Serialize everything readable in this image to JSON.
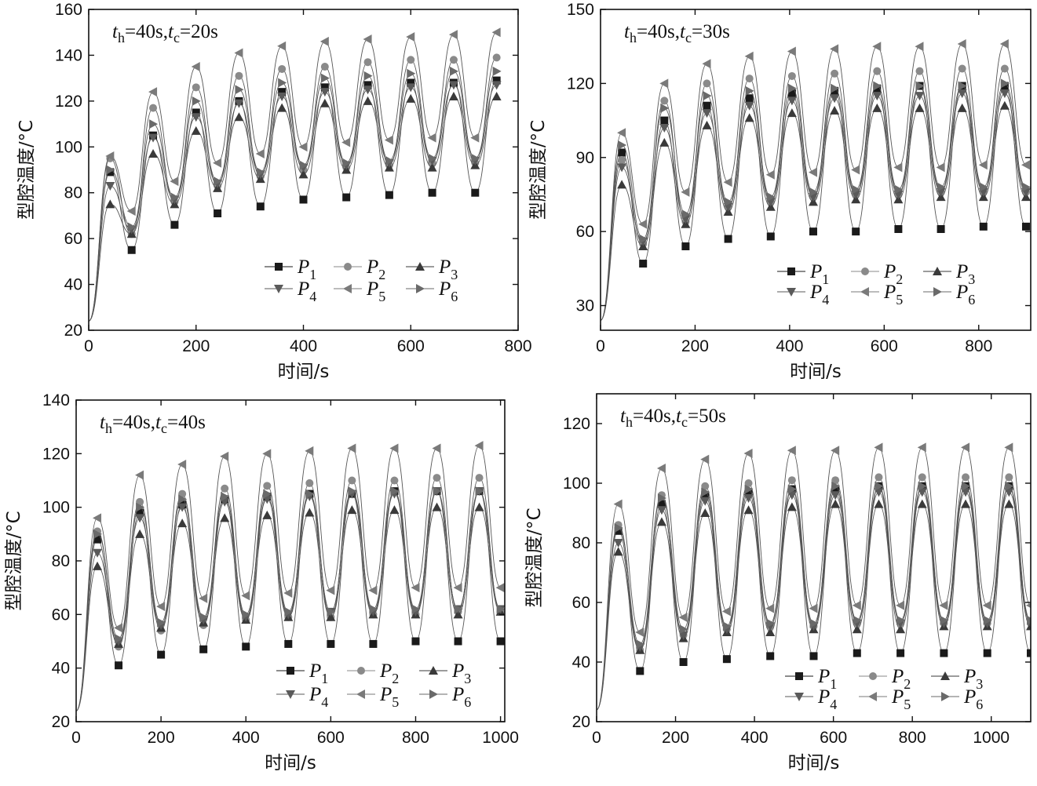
{
  "figure": {
    "ylabel": "型腔温度/°C",
    "xlabel": "时间/s",
    "legend": [
      "P1",
      "P2",
      "P3",
      "P4",
      "P5",
      "P6"
    ]
  },
  "colors": {
    "P1": "#1a1a1a",
    "P2": "#8a8a8a",
    "P3": "#3a3a3a",
    "P4": "#5a5a5a",
    "P5": "#7a7a7a",
    "P6": "#6a6a6a"
  },
  "chart_data": [
    {
      "type": "line",
      "annotation": {
        "th": "40s",
        "tc": "20s"
      },
      "xlim": [
        0,
        800
      ],
      "ylim": [
        20,
        160
      ],
      "xticks": [
        0,
        200,
        400,
        600,
        800
      ],
      "yticks": [
        20,
        40,
        60,
        80,
        100,
        120,
        140,
        160
      ],
      "legend_position": "bottom-right",
      "peak_x": [
        40,
        120,
        200,
        280,
        360,
        440,
        520,
        600,
        680,
        760
      ],
      "trough_x": [
        80,
        160,
        240,
        320,
        400,
        480,
        560,
        640,
        720
      ],
      "series": [
        {
          "name": "P1",
          "peaks": [
            89,
            105,
            115,
            120,
            124,
            126,
            127,
            128,
            128,
            129
          ],
          "troughs": [
            55,
            66,
            71,
            74,
            77,
            78,
            79,
            80,
            80
          ]
        },
        {
          "name": "P2",
          "peaks": [
            95,
            117,
            126,
            131,
            134,
            135,
            137,
            138,
            138,
            139
          ],
          "troughs": [
            62,
            76,
            83,
            87,
            90,
            91,
            92,
            93,
            93
          ]
        },
        {
          "name": "P3",
          "peaks": [
            75,
            97,
            107,
            113,
            117,
            119,
            120,
            121,
            122,
            122
          ],
          "troughs": [
            62,
            75,
            82,
            86,
            88,
            90,
            91,
            91,
            92
          ]
        },
        {
          "name": "P4",
          "peaks": [
            83,
            104,
            113,
            119,
            122,
            124,
            125,
            126,
            127,
            127
          ],
          "troughs": [
            64,
            77,
            84,
            88,
            91,
            92,
            93,
            94,
            94
          ]
        },
        {
          "name": "P5",
          "peaks": [
            96,
            124,
            135,
            141,
            144,
            146,
            147,
            148,
            149,
            150
          ],
          "troughs": [
            72,
            85,
            93,
            97,
            100,
            102,
            103,
            104,
            104
          ]
        },
        {
          "name": "P6",
          "peaks": [
            90,
            110,
            120,
            125,
            128,
            130,
            131,
            132,
            133,
            133
          ],
          "troughs": [
            65,
            78,
            85,
            89,
            92,
            93,
            94,
            95,
            95
          ]
        }
      ]
    },
    {
      "type": "line",
      "annotation": {
        "th": "40s",
        "tc": "30s"
      },
      "xlim": [
        0,
        910
      ],
      "ylim": [
        20,
        150
      ],
      "xticks": [
        0,
        200,
        400,
        600,
        800
      ],
      "yticks": [
        30,
        60,
        90,
        120,
        150
      ],
      "legend_position": "bottom-right",
      "peak_x": [
        45,
        135,
        225,
        315,
        405,
        495,
        585,
        675,
        765,
        855
      ],
      "trough_x": [
        90,
        180,
        270,
        360,
        450,
        540,
        630,
        720,
        810,
        900
      ],
      "series": [
        {
          "name": "P1",
          "peaks": [
            92,
            105,
            111,
            114,
            116,
            117,
            118,
            119,
            119,
            119
          ],
          "troughs": [
            47,
            54,
            57,
            58,
            60,
            60,
            61,
            61,
            62,
            62
          ]
        },
        {
          "name": "P2",
          "peaks": [
            89,
            113,
            120,
            122,
            123,
            124,
            125,
            125,
            126,
            126
          ],
          "troughs": [
            55,
            64,
            70,
            72,
            74,
            75,
            75,
            76,
            76,
            76
          ]
        },
        {
          "name": "P3",
          "peaks": [
            79,
            96,
            103,
            106,
            108,
            109,
            110,
            110,
            110,
            111
          ],
          "troughs": [
            54,
            63,
            68,
            70,
            72,
            73,
            73,
            74,
            74,
            74
          ]
        },
        {
          "name": "P4",
          "peaks": [
            86,
            102,
            108,
            111,
            113,
            114,
            115,
            115,
            116,
            116
          ],
          "troughs": [
            56,
            65,
            70,
            72,
            74,
            75,
            75,
            76,
            76,
            76
          ]
        },
        {
          "name": "P5",
          "peaks": [
            100,
            120,
            128,
            131,
            133,
            134,
            135,
            135,
            136,
            136
          ],
          "troughs": [
            63,
            76,
            80,
            83,
            84,
            85,
            86,
            86,
            87,
            87
          ]
        },
        {
          "name": "P6",
          "peaks": [
            95,
            110,
            115,
            117,
            118,
            118,
            119,
            119,
            119,
            120
          ],
          "troughs": [
            57,
            67,
            72,
            74,
            76,
            77,
            77,
            78,
            78,
            78
          ]
        }
      ]
    },
    {
      "type": "line",
      "annotation": {
        "th": "40s",
        "tc": "40s"
      },
      "xlim": [
        0,
        1010
      ],
      "ylim": [
        20,
        140
      ],
      "xticks": [
        0,
        200,
        400,
        600,
        800,
        1000
      ],
      "yticks": [
        20,
        40,
        60,
        80,
        100,
        120,
        140
      ],
      "legend_position": "bottom-right",
      "peak_x": [
        50,
        150,
        250,
        350,
        450,
        550,
        650,
        750,
        850,
        950
      ],
      "trough_x": [
        100,
        200,
        300,
        400,
        500,
        600,
        700,
        800,
        900,
        1000
      ],
      "series": [
        {
          "name": "P1",
          "peaks": [
            88,
            98,
            101,
            103,
            104,
            105,
            105,
            106,
            106,
            106
          ],
          "troughs": [
            41,
            45,
            47,
            48,
            49,
            49,
            49,
            50,
            50,
            50
          ]
        },
        {
          "name": "P2",
          "peaks": [
            91,
            102,
            105,
            107,
            108,
            109,
            110,
            110,
            111,
            111
          ],
          "troughs": [
            48,
            54,
            56,
            58,
            59,
            59,
            60,
            60,
            61,
            61
          ]
        },
        {
          "name": "P3",
          "peaks": [
            78,
            90,
            94,
            96,
            97,
            98,
            99,
            99,
            100,
            100
          ],
          "troughs": [
            49,
            55,
            57,
            58,
            59,
            59,
            60,
            60,
            60,
            61
          ]
        },
        {
          "name": "P4",
          "peaks": [
            83,
            96,
            100,
            102,
            103,
            104,
            105,
            105,
            106,
            106
          ],
          "troughs": [
            50,
            56,
            58,
            59,
            60,
            61,
            61,
            61,
            62,
            62
          ]
        },
        {
          "name": "P5",
          "peaks": [
            96,
            112,
            116,
            119,
            120,
            121,
            122,
            122,
            122,
            123
          ],
          "troughs": [
            55,
            63,
            66,
            67,
            68,
            69,
            69,
            70,
            70,
            70
          ]
        },
        {
          "name": "P6",
          "peaks": [
            90,
            100,
            103,
            104,
            105,
            105,
            106,
            106,
            106,
            106
          ],
          "troughs": [
            51,
            57,
            59,
            60,
            61,
            61,
            62,
            62,
            62,
            62
          ]
        }
      ]
    },
    {
      "type": "line",
      "annotation": {
        "th": "40s",
        "tc": "50s"
      },
      "xlim": [
        0,
        1100
      ],
      "ylim": [
        20,
        130
      ],
      "xticks": [
        0,
        200,
        400,
        600,
        800,
        1000
      ],
      "yticks": [
        20,
        40,
        60,
        80,
        100,
        120
      ],
      "legend_position": "bottom-right",
      "peak_x": [
        55,
        165,
        275,
        385,
        495,
        605,
        715,
        825,
        935,
        1045
      ],
      "trough_x": [
        110,
        220,
        330,
        440,
        550,
        660,
        770,
        880,
        990,
        1100
      ],
      "series": [
        {
          "name": "P1",
          "peaks": [
            84,
            93,
            96,
            97,
            98,
            98,
            99,
            99,
            99,
            99
          ],
          "troughs": [
            37,
            40,
            41,
            42,
            42,
            43,
            43,
            43,
            43,
            43
          ]
        },
        {
          "name": "P2",
          "peaks": [
            86,
            96,
            99,
            100,
            101,
            101,
            102,
            102,
            102,
            102
          ],
          "troughs": [
            44,
            49,
            51,
            52,
            52,
            53,
            53,
            53,
            53,
            53
          ]
        },
        {
          "name": "P3",
          "peaks": [
            77,
            87,
            90,
            91,
            92,
            93,
            93,
            93,
            93,
            93
          ],
          "troughs": [
            44,
            48,
            50,
            50,
            51,
            51,
            51,
            52,
            52,
            52
          ]
        },
        {
          "name": "P4",
          "peaks": [
            80,
            91,
            94,
            95,
            96,
            96,
            97,
            97,
            97,
            97
          ],
          "troughs": [
            45,
            49,
            51,
            52,
            52,
            53,
            53,
            53,
            53,
            53
          ]
        },
        {
          "name": "P5",
          "peaks": [
            93,
            105,
            108,
            110,
            111,
            111,
            112,
            112,
            112,
            112
          ],
          "troughs": [
            50,
            55,
            57,
            58,
            58,
            59,
            59,
            59,
            59,
            59
          ]
        },
        {
          "name": "P6",
          "peaks": [
            85,
            95,
            97,
            98,
            98,
            99,
            99,
            99,
            99,
            99
          ],
          "troughs": [
            46,
            51,
            52,
            53,
            53,
            54,
            54,
            54,
            54,
            54
          ]
        }
      ]
    }
  ]
}
